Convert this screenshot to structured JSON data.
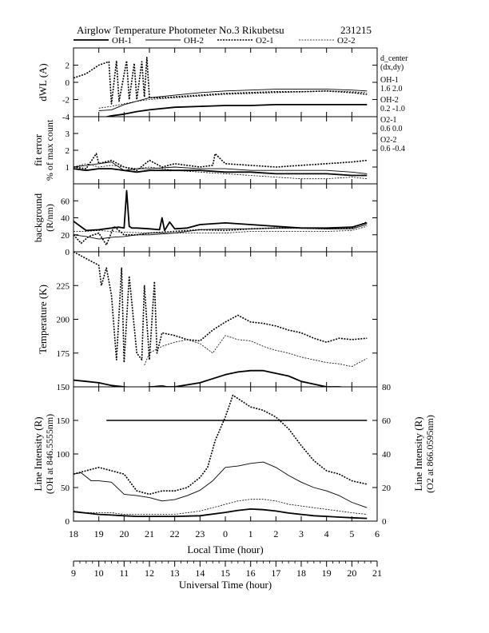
{
  "figure": {
    "title": "Airglow Temperature Photometer No.3  Rikubetsu",
    "date": "231215",
    "legend": [
      {
        "name": "OH-1",
        "style": "solid-thick"
      },
      {
        "name": "OH-2",
        "style": "solid-thin"
      },
      {
        "name": "O2-1",
        "style": "dash-thick"
      },
      {
        "name": "O2-2",
        "style": "dash-thin"
      }
    ],
    "side_info": {
      "header1": "d_center",
      "header2": "(dx,dy)",
      "entries": [
        {
          "label": "OH-1",
          "value": "1.6   2.0"
        },
        {
          "label": "OH-2",
          "value": "0.2   -1.0"
        },
        {
          "label": "O2-1",
          "value": "0.6   0.0"
        },
        {
          "label": "O2-2",
          "value": "0.6   -0.4"
        }
      ]
    },
    "x_local": {
      "label": "Local Time (hour)",
      "ticks": [
        "18",
        "19",
        "20",
        "21",
        "22",
        "23",
        "0",
        "1",
        "2",
        "3",
        "4",
        "5",
        "6"
      ]
    },
    "x_ut": {
      "label": "Universal Time (hour)",
      "ticks": [
        "9",
        "10",
        "11",
        "12",
        "13",
        "14",
        "15",
        "16",
        "17",
        "18",
        "19",
        "20",
        "21"
      ]
    }
  },
  "chart_data": [
    {
      "type": "line",
      "panel": "dWL",
      "ylabel": "dWL (A)",
      "ylim": [
        -4,
        4
      ],
      "yticks": [
        "-4",
        "-2",
        "0",
        "2"
      ],
      "x_unit": "UT hour",
      "series": [
        {
          "name": "OH-1",
          "x": [
            10.0,
            10.5,
            11.0,
            11.5,
            12.0,
            13.0,
            14.0,
            15.0,
            16.0,
            17.0,
            18.0,
            19.0,
            20.0,
            20.6
          ],
          "y": [
            -4.2,
            -3.9,
            -3.7,
            -3.4,
            -3.2,
            -2.9,
            -2.8,
            -2.7,
            -2.7,
            -2.6,
            -2.6,
            -2.6,
            -2.6,
            -2.6
          ]
        },
        {
          "name": "OH-2",
          "x": [
            10.0,
            10.5,
            11.0,
            11.5,
            12.0,
            13.0,
            14.0,
            15.0,
            16.0,
            17.0,
            18.0,
            19.0,
            20.0,
            20.6
          ],
          "y": [
            -3.3,
            -3.2,
            -2.6,
            -2.2,
            -1.8,
            -1.5,
            -1.2,
            -1.0,
            -0.9,
            -0.8,
            -0.8,
            -0.8,
            -0.9,
            -1.0
          ]
        },
        {
          "name": "O2-1",
          "x": [
            9.0,
            9.5,
            10.0,
            10.4,
            10.5,
            10.7,
            10.8,
            11.1,
            11.2,
            11.4,
            11.5,
            11.7,
            11.8,
            11.9,
            12.0,
            12.5,
            13.0,
            14.0,
            15.0,
            16.0,
            17.0,
            18.0,
            19.0,
            20.0,
            20.6
          ],
          "y": [
            0.5,
            1.0,
            2.0,
            2.4,
            -2.5,
            2.5,
            -2.2,
            2.5,
            -2.0,
            2.2,
            -2.0,
            2.4,
            -1.7,
            2.9,
            -1.8,
            -1.8,
            -1.7,
            -1.5,
            -1.3,
            -1.2,
            -1.1,
            -1.1,
            -1.0,
            -1.2,
            -1.4
          ]
        },
        {
          "name": "O2-2",
          "x": [
            10.0,
            10.5,
            11.0,
            11.5,
            12.0,
            13.0,
            14.0,
            15.0,
            16.0,
            17.0,
            18.0,
            19.0,
            20.0,
            20.6
          ],
          "y": [
            -3.0,
            -2.8,
            -2.5,
            -2.2,
            -2.0,
            -1.8,
            -1.6,
            -1.4,
            -1.3,
            -1.2,
            -1.1,
            -1.0,
            -1.1,
            -1.2
          ]
        }
      ]
    },
    {
      "type": "line",
      "panel": "fit-error",
      "ylabel": "fit error",
      "ylabel2": "% of max count",
      "ylim": [
        0,
        4
      ],
      "yticks": [
        "1",
        "2",
        "3"
      ],
      "x_unit": "UT hour",
      "series": [
        {
          "name": "OH-1",
          "x": [
            9.0,
            9.5,
            10.0,
            10.5,
            11.0,
            11.5,
            12.0,
            13.0,
            14.0,
            15.0,
            16.0,
            17.0,
            18.0,
            19.0,
            20.0,
            20.6
          ],
          "y": [
            0.9,
            0.8,
            0.9,
            0.9,
            0.8,
            0.7,
            0.8,
            0.8,
            0.8,
            0.7,
            0.7,
            0.6,
            0.6,
            0.6,
            0.5,
            0.5
          ]
        },
        {
          "name": "OH-2",
          "x": [
            9.0,
            9.5,
            10.0,
            10.5,
            11.0,
            11.5,
            12.0,
            13.0,
            14.0,
            15.0,
            16.0,
            17.0,
            18.0,
            19.0,
            20.0,
            20.6
          ],
          "y": [
            1.0,
            1.1,
            1.2,
            1.3,
            0.8,
            0.9,
            0.9,
            1.0,
            0.9,
            0.9,
            0.8,
            0.8,
            0.8,
            0.8,
            0.7,
            0.6
          ]
        },
        {
          "name": "O2-1",
          "x": [
            9.0,
            9.5,
            9.9,
            10.0,
            10.5,
            11.0,
            11.5,
            12.0,
            12.5,
            13.0,
            14.0,
            14.5,
            14.6,
            15.0,
            16.0,
            17.0,
            18.0,
            19.0,
            20.0,
            20.6
          ],
          "y": [
            1.0,
            0.9,
            1.8,
            1.2,
            1.4,
            1.0,
            0.8,
            1.4,
            1.0,
            1.2,
            1.0,
            1.1,
            1.8,
            1.2,
            1.1,
            1.0,
            1.1,
            1.2,
            1.3,
            1.4
          ]
        },
        {
          "name": "O2-2",
          "x": [
            9.0,
            9.5,
            10.0,
            10.5,
            11.0,
            11.5,
            12.0,
            13.0,
            14.0,
            15.0,
            16.0,
            17.0,
            18.0,
            19.0,
            20.0,
            20.6
          ],
          "y": [
            1.0,
            1.2,
            1.0,
            1.1,
            1.0,
            0.9,
            1.0,
            0.8,
            0.7,
            0.6,
            0.5,
            0.4,
            0.3,
            0.3,
            0.4,
            0.3
          ]
        }
      ]
    },
    {
      "type": "line",
      "panel": "background",
      "ylabel": "background",
      "ylabel2": "(R/nm)",
      "ylim": [
        0,
        80
      ],
      "yticks": [
        "0",
        "20",
        "40",
        "60"
      ],
      "x_unit": "UT hour",
      "series": [
        {
          "name": "OH-1",
          "x": [
            9.0,
            9.5,
            10.0,
            10.5,
            10.8,
            11.0,
            11.1,
            11.2,
            11.3,
            11.5,
            12.0,
            12.4,
            12.5,
            12.6,
            12.8,
            13.0,
            13.5,
            14.0,
            15.0,
            16.0,
            17.0,
            18.0,
            19.0,
            20.0,
            20.6
          ],
          "y": [
            36,
            25,
            26,
            28,
            29,
            28,
            72,
            30,
            28,
            28,
            27,
            26,
            40,
            25,
            35,
            27,
            28,
            32,
            34,
            32,
            30,
            28,
            28,
            29,
            34
          ]
        },
        {
          "name": "OH-2",
          "x": [
            9.0,
            9.5,
            10.0,
            10.5,
            11.0,
            11.5,
            12.0,
            12.5,
            13.0,
            14.0,
            15.0,
            16.0,
            17.0,
            18.0,
            19.0,
            20.0,
            20.6
          ],
          "y": [
            20,
            18,
            15,
            17,
            18,
            20,
            20,
            21,
            22,
            26,
            27,
            27,
            28,
            28,
            27,
            27,
            32
          ]
        },
        {
          "name": "O2-1",
          "x": [
            9.0,
            9.3,
            9.6,
            10.0,
            10.3,
            10.6,
            11.0,
            11.5,
            12.0,
            13.0,
            14.0,
            15.0,
            16.0,
            17.0,
            18.0,
            19.0,
            20.0,
            20.6
          ],
          "y": [
            20,
            10,
            18,
            22,
            8,
            30,
            20,
            20,
            22,
            24,
            26,
            25,
            27,
            28,
            28,
            27,
            28,
            35
          ]
        },
        {
          "name": "O2-2",
          "x": [
            9.0,
            9.5,
            10.0,
            10.5,
            11.0,
            12.0,
            13.0,
            14.0,
            15.0,
            16.0,
            17.0,
            18.0,
            19.0,
            20.0,
            20.6
          ],
          "y": [
            24,
            24,
            25,
            24,
            23,
            22,
            22,
            22,
            22,
            24,
            24,
            24,
            24,
            25,
            30
          ]
        }
      ]
    },
    {
      "type": "line",
      "panel": "temperature",
      "ylabel": "Temperature (K)",
      "ylim": [
        150,
        250
      ],
      "yticks": [
        "150",
        "175",
        "200",
        "225"
      ],
      "x_unit": "UT hour",
      "series": [
        {
          "name": "OH-1",
          "x": [
            9.0,
            9.5,
            10.0,
            10.5,
            11.0,
            11.5,
            12.0,
            12.5,
            13.0,
            14.0,
            15.0,
            15.5,
            16.0,
            16.5,
            17.0,
            17.5,
            18.0,
            18.5,
            19.0,
            19.5,
            20.0,
            20.6
          ],
          "y": [
            155,
            154,
            153,
            151,
            150,
            149,
            150,
            150,
            150,
            153,
            159,
            161,
            162,
            162,
            160,
            158,
            154,
            152,
            150,
            150,
            149,
            149
          ]
        },
        {
          "name": "OH-2",
          "x": [
            12.0,
            12.5,
            13.0,
            13.5,
            14.0,
            14.5,
            15.0,
            15.5,
            16.0,
            17.0,
            18.0,
            19.0,
            20.0,
            20.6
          ],
          "y": [
            150,
            151,
            149,
            147,
            147,
            148,
            149,
            149,
            149,
            150,
            150,
            149,
            148,
            145
          ]
        },
        {
          "name": "O2-1",
          "x": [
            9.0,
            9.5,
            10.0,
            10.1,
            10.3,
            10.5,
            10.7,
            10.9,
            11.0,
            11.2,
            11.5,
            11.7,
            11.8,
            12.0,
            12.2,
            12.3,
            12.5,
            13.0,
            13.5,
            14.0,
            14.5,
            15.0,
            15.5,
            16.0,
            16.5,
            17.0,
            17.5,
            18.0,
            18.5,
            19.0,
            19.5,
            20.0,
            20.6
          ],
          "y": [
            250,
            245,
            240,
            225,
            238,
            218,
            170,
            238,
            168,
            232,
            175,
            170,
            225,
            170,
            228,
            175,
            190,
            188,
            185,
            184,
            192,
            198,
            203,
            198,
            197,
            195,
            192,
            190,
            186,
            183,
            186,
            185,
            186
          ]
        },
        {
          "name": "O2-2",
          "x": [
            11.8,
            12.0,
            12.5,
            13.0,
            13.5,
            14.0,
            14.5,
            15.0,
            15.5,
            16.0,
            16.5,
            17.0,
            17.5,
            18.0,
            18.5,
            19.0,
            19.5,
            20.0,
            20.6
          ],
          "y": [
            166,
            175,
            180,
            183,
            185,
            182,
            175,
            188,
            185,
            184,
            180,
            177,
            175,
            172,
            170,
            168,
            167,
            165,
            171
          ]
        }
      ]
    },
    {
      "type": "line",
      "panel": "line-intensity",
      "ylabel": "Line Intensity (R)",
      "ylabel2": "(OH at 846.5555nm)",
      "y2label": "Line Intensity (R)",
      "y2label2": "(O2 at 866.0595nm)",
      "ylim": [
        0,
        200
      ],
      "yticks": [
        "0",
        "50",
        "100",
        "150"
      ],
      "y2lim": [
        0,
        80
      ],
      "y2ticks": [
        "0",
        "20",
        "40",
        "60",
        "80"
      ],
      "x_unit": "UT hour",
      "series": [
        {
          "name": "OH-1",
          "axis": "left",
          "x": [
            9.0,
            9.5,
            10.0,
            10.5,
            11.0,
            11.5,
            12.0,
            13.0,
            14.0,
            15.0,
            15.5,
            16.0,
            16.5,
            17.0,
            17.5,
            18.0,
            18.5,
            19.0,
            19.5,
            20.0,
            20.6
          ],
          "y": [
            14,
            12,
            10,
            9,
            8,
            7,
            7,
            7,
            8,
            13,
            16,
            18,
            17,
            15,
            12,
            10,
            8,
            7,
            6,
            5,
            4
          ]
        },
        {
          "name": "OH-2",
          "axis": "left",
          "x": [
            9.0,
            9.3,
            9.7,
            10.0,
            10.5,
            11.0,
            11.5,
            12.0,
            12.5,
            13.0,
            13.5,
            14.0,
            14.5,
            15.0,
            15.5,
            16.0,
            16.5,
            17.0,
            17.5,
            18.0,
            18.5,
            19.0,
            19.5,
            20.0,
            20.6
          ],
          "y": [
            70,
            72,
            60,
            60,
            58,
            40,
            38,
            35,
            30,
            32,
            38,
            46,
            60,
            80,
            82,
            86,
            88,
            80,
            68,
            58,
            50,
            45,
            38,
            28,
            20
          ]
        },
        {
          "name": "O2-1",
          "axis": "right",
          "x": [
            9.0,
            9.5,
            10.0,
            10.5,
            11.0,
            11.5,
            12.0,
            12.5,
            13.0,
            13.5,
            14.0,
            14.3,
            14.6,
            15.0,
            15.3,
            15.6,
            16.0,
            16.5,
            17.0,
            17.5,
            18.0,
            18.5,
            19.0,
            19.5,
            20.0,
            20.6
          ],
          "y": [
            28,
            30,
            32,
            30,
            28,
            18,
            16,
            18,
            18,
            20,
            26,
            32,
            48,
            62,
            75,
            72,
            68,
            66,
            62,
            55,
            45,
            36,
            30,
            28,
            24,
            22
          ]
        },
        {
          "name": "O2-2",
          "axis": "right",
          "x": [
            9.0,
            9.5,
            10.0,
            10.5,
            11.0,
            11.5,
            12.0,
            12.5,
            13.0,
            13.5,
            14.0,
            14.5,
            15.0,
            15.5,
            16.0,
            16.5,
            17.0,
            17.5,
            18.0,
            18.5,
            19.0,
            19.5,
            20.0,
            20.6
          ],
          "y": [
            6,
            5,
            5,
            5,
            4,
            4,
            4,
            4,
            4,
            5,
            6,
            8,
            10,
            12,
            13,
            13,
            12,
            10,
            9,
            8,
            7,
            6,
            5,
            4
          ]
        },
        {
          "name": "",
          "axis": "left",
          "x": [
            10.3,
            20.6
          ],
          "y": [
            150,
            150
          ]
        }
      ]
    }
  ]
}
